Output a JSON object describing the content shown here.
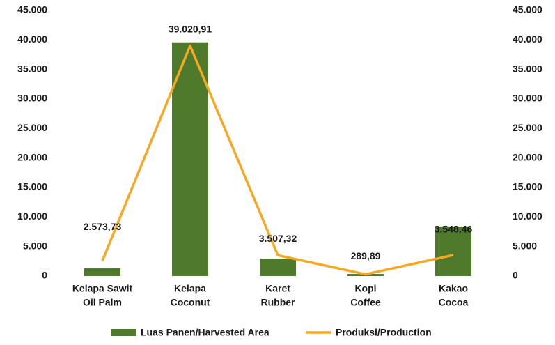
{
  "chart_data": {
    "type": "bar_line",
    "categories": [
      [
        "Kelapa Sawit",
        "Oil Palm"
      ],
      [
        "Kelapa",
        "Coconut"
      ],
      [
        "Karet",
        "Rubber"
      ],
      [
        "Kopi",
        "Coffee"
      ],
      [
        "Kakao",
        "Cocoa"
      ]
    ],
    "series": [
      {
        "name": "Luas Panen/Harvested Area",
        "type": "bar",
        "color": "#4f7a2c",
        "values": [
          1300,
          39600,
          2950,
          350,
          8400
        ]
      },
      {
        "name": "Produksi/Production",
        "type": "line",
        "axis": "y2",
        "color": "#f7a823",
        "values": [
          2573.73,
          39020.91,
          3507.32,
          289.89,
          3548.46
        ],
        "value_labels": [
          "2.573,73",
          "39.020,91",
          "3.507,32",
          "289,89",
          "3.548,46"
        ]
      }
    ],
    "ylim": [
      0,
      45000
    ],
    "yticks": [
      0,
      {
        "value": 5000,
        "label": "5.000"
      },
      {
        "value": 10000,
        "label": "10.000"
      },
      {
        "value": 15000,
        "label": "15.000"
      },
      {
        "value": 20000,
        "label": "20.000"
      },
      {
        "value": 25000,
        "label": "25.000"
      },
      {
        "value": 30000,
        "label": "30.000"
      },
      {
        "value": 35000,
        "label": "35.000"
      },
      {
        "value": 40000,
        "label": "40.000"
      },
      {
        "value": 45000,
        "label": "45.000"
      }
    ],
    "y2lim": [
      0,
      45000
    ],
    "y2ticks": [
      0,
      {
        "value": 5000,
        "label": "5.000"
      },
      {
        "value": 10000,
        "label": "10.000"
      },
      {
        "value": 15000,
        "label": "15.000"
      },
      {
        "value": 20000,
        "label": "20.000"
      },
      {
        "value": 25000,
        "label": "25.000"
      },
      {
        "value": 30000,
        "label": "30.000"
      },
      {
        "value": 35000,
        "label": "35.000"
      },
      {
        "value": 40000,
        "label": "40.000"
      },
      {
        "value": 45000,
        "label": "45.000"
      }
    ],
    "legend": "bottom"
  }
}
